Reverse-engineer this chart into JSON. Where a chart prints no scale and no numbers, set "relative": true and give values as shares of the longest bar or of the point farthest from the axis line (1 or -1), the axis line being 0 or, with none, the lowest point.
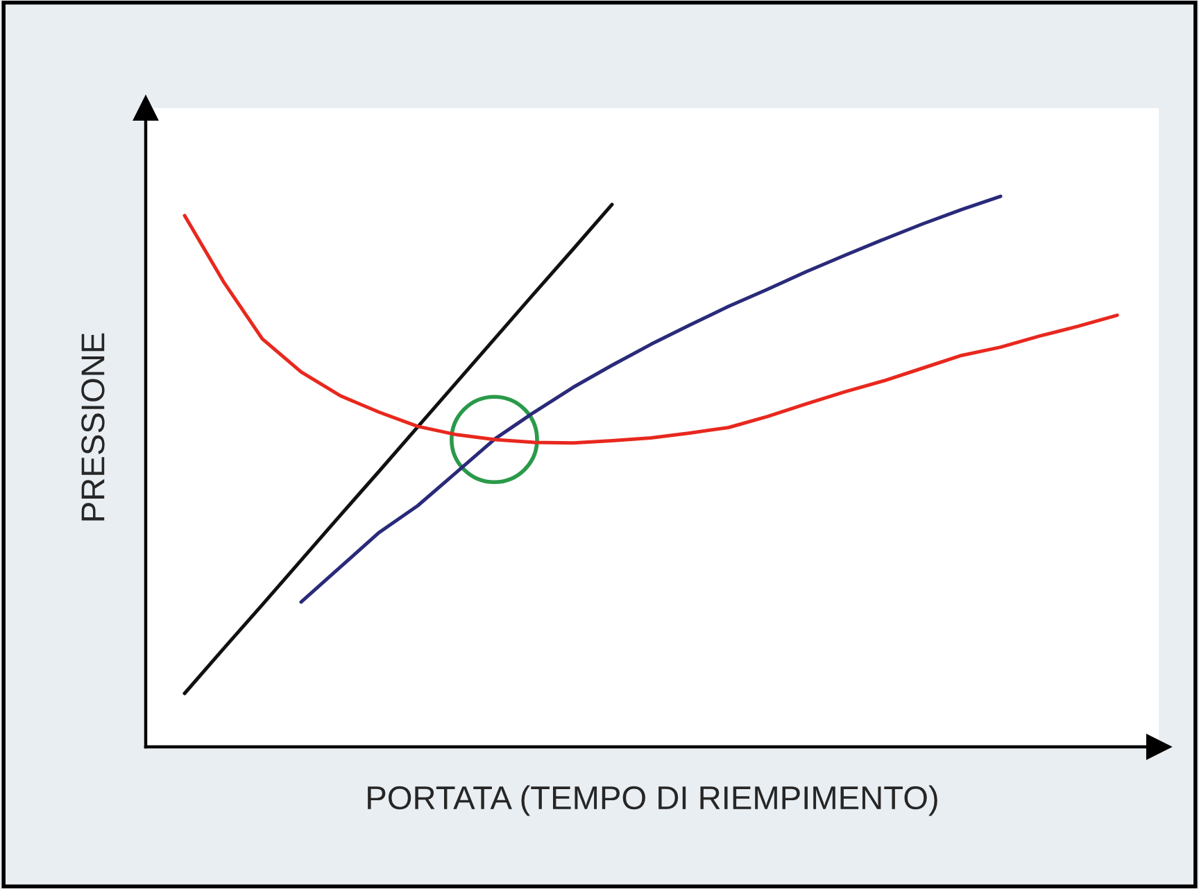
{
  "chart_data": {
    "type": "line",
    "relative": true,
    "xlabel": "PORTATA (TEMPO DI RIEMPIMENTO)",
    "ylabel": "PRESSIONE",
    "legend": false,
    "categories": [
      null,
      null,
      null,
      null,
      null,
      null,
      null,
      null,
      null,
      null,
      null,
      null,
      null,
      null,
      null,
      null,
      null,
      null,
      null,
      null,
      null,
      null,
      null,
      null,
      null
    ],
    "series": [
      {
        "color": "#111111",
        "values": [
          0.097,
          0.178,
          0.258,
          0.339,
          0.42,
          0.5,
          0.581,
          0.662,
          0.743,
          0.824,
          0.904,
          0.985,
          null,
          null,
          null,
          null,
          null,
          null,
          null,
          null,
          null,
          null,
          null,
          null,
          null
        ]
      },
      {
        "color": "#2a2a7a",
        "values": [
          null,
          null,
          null,
          0.263,
          0.326,
          0.389,
          0.438,
          0.499,
          0.56,
          0.608,
          0.653,
          0.693,
          0.731,
          0.766,
          0.8,
          0.831,
          0.863,
          0.893,
          0.922,
          0.95,
          0.976,
          1.0,
          null,
          null,
          null
        ]
      },
      {
        "color": "#e8281e",
        "values": [
          0.965,
          0.845,
          0.741,
          0.681,
          0.638,
          0.608,
          0.582,
          0.567,
          0.558,
          0.553,
          0.552,
          0.556,
          0.561,
          0.57,
          0.58,
          0.6,
          0.623,
          0.645,
          0.665,
          0.688,
          0.711,
          0.726,
          0.746,
          0.764,
          0.784
        ]
      }
    ]
  }
}
